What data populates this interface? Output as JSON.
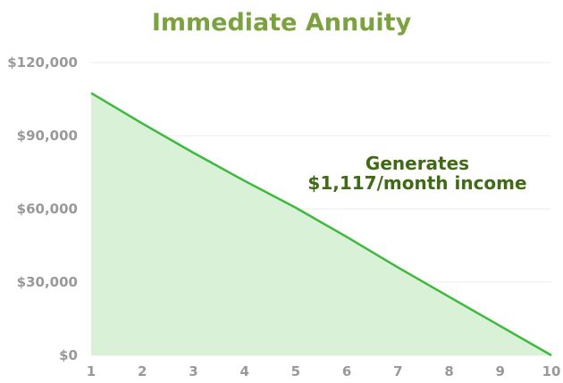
{
  "chart_data": {
    "type": "area",
    "title": "Immediate Annuity",
    "xlabel": "",
    "ylabel": "",
    "x": [
      1,
      2,
      3,
      4,
      5,
      6,
      7,
      8,
      9,
      10
    ],
    "series": [
      {
        "values": [
          107500,
          95000,
          83000,
          71500,
          60500,
          48500,
          36000,
          24000,
          12000,
          0
        ]
      }
    ],
    "ylim": [
      0,
      120000
    ],
    "xlim": [
      1,
      10
    ],
    "y_ticks": [
      0,
      30000,
      60000,
      90000,
      120000
    ],
    "y_tick_labels": [
      "$0",
      "$30,000",
      "$60,000",
      "$90,000",
      "$120,000"
    ],
    "x_tick_labels": [
      "1",
      "2",
      "3",
      "4",
      "5",
      "6",
      "7",
      "8",
      "9",
      "10"
    ],
    "annotation": [
      "Generates",
      "$1,117/month income"
    ],
    "grid": true,
    "colors": {
      "title": "#7ba23f",
      "line": "#3dba3d",
      "fill": "#d9f2d7",
      "annotation": "#3f6b17",
      "tick": "#999999",
      "grid": "#eeeeee"
    }
  }
}
